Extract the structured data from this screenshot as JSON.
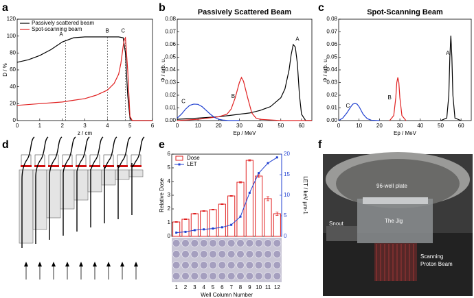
{
  "panel_labels": [
    "a",
    "b",
    "c",
    "d",
    "e",
    "f"
  ],
  "chart_data": [
    {
      "type": "line",
      "xlabel": "z / cm",
      "ylabel": "D / %",
      "xlim": [
        0,
        6
      ],
      "xticks": [
        0,
        1,
        2,
        3,
        4,
        5,
        6
      ],
      "ylim": [
        0,
        120
      ],
      "yticks": [
        0,
        20,
        40,
        60,
        80,
        100,
        120
      ],
      "legend": "upper left",
      "series": [
        {
          "name": "Passively scattered beam",
          "color": "#000000",
          "x": [
            0,
            0.5,
            1,
            1.5,
            2,
            2.5,
            3,
            3.5,
            4,
            4.5,
            4.7,
            4.8,
            4.9,
            5.0,
            5.1,
            6
          ],
          "values": [
            69,
            72,
            77,
            84,
            93,
            98,
            99,
            99,
            99,
            99,
            98,
            80,
            30,
            3,
            0,
            0
          ]
        },
        {
          "name": "Spot-scanning beam",
          "color": "#e02020",
          "x": [
            0,
            0.5,
            1,
            1.5,
            2,
            2.5,
            3,
            3.5,
            4,
            4.3,
            4.5,
            4.6,
            4.7,
            4.75,
            4.8,
            4.9,
            5.0,
            5.1,
            6
          ],
          "values": [
            18,
            19,
            20,
            21,
            22,
            24,
            26,
            30,
            36,
            44,
            55,
            68,
            88,
            96,
            98,
            60,
            5,
            0,
            0
          ]
        }
      ],
      "vlines": [
        {
          "x": 2.15,
          "y": 96
        },
        {
          "x": 4.0,
          "y": 99
        },
        {
          "x": 4.8,
          "y": 99
        }
      ],
      "annotations": [
        {
          "text": "A",
          "x": 1.95,
          "y": 102
        },
        {
          "text": "B",
          "x": 4.0,
          "y": 106
        },
        {
          "text": "C",
          "x": 4.7,
          "y": 106
        }
      ]
    },
    {
      "type": "line",
      "title": "Passively Scattered Beam",
      "xlabel": "Ep / MeV",
      "ylabel": "Φ / arb. u.",
      "xlim": [
        0,
        65
      ],
      "xticks": [
        0,
        10,
        20,
        30,
        40,
        50,
        60
      ],
      "ylim": [
        0,
        0.08
      ],
      "yticks": [
        {
          "value": 0,
          "label": "0.00"
        },
        0.01,
        0.02,
        0.03,
        0.04,
        0.05,
        0.06,
        0.07,
        0.08
      ],
      "series": [
        {
          "color": "#000000",
          "x": [
            0,
            5,
            10,
            15,
            20,
            25,
            30,
            35,
            40,
            45,
            50,
            52,
            54,
            55,
            56,
            57,
            58,
            59,
            60,
            62,
            65
          ],
          "values": [
            0.001,
            0.0015,
            0.002,
            0.0025,
            0.003,
            0.004,
            0.005,
            0.006,
            0.008,
            0.011,
            0.018,
            0.025,
            0.04,
            0.052,
            0.06,
            0.058,
            0.045,
            0.02,
            0.005,
            0,
            0
          ]
        },
        {
          "color": "#e02020",
          "x": [
            0,
            10,
            20,
            24,
            26,
            28,
            30,
            31,
            32,
            34,
            36,
            38,
            40,
            45,
            50,
            60,
            65
          ],
          "values": [
            0,
            0.001,
            0.003,
            0.005,
            0.009,
            0.018,
            0.03,
            0.034,
            0.031,
            0.018,
            0.006,
            0.002,
            0.001,
            0.0005,
            0,
            0,
            0
          ]
        },
        {
          "color": "#1f3fd0",
          "x": [
            0,
            2,
            4,
            6,
            8,
            10,
            12,
            14,
            16,
            18,
            20,
            22,
            25,
            30
          ],
          "values": [
            0.002,
            0.005,
            0.009,
            0.012,
            0.013,
            0.0128,
            0.011,
            0.008,
            0.005,
            0.0025,
            0.001,
            0.0004,
            0,
            0
          ]
        }
      ],
      "annotations": [
        {
          "text": "A",
          "x": 58,
          "y": 0.064
        },
        {
          "text": "B",
          "x": 27,
          "y": 0.019
        },
        {
          "text": "C",
          "x": 3,
          "y": 0.015
        }
      ]
    },
    {
      "type": "line",
      "title": "Spot-Scanning Beam",
      "xlabel": "Ep / MeV",
      "ylabel": "Φ / arb. u.",
      "xlim": [
        0,
        65
      ],
      "xticks": [
        0,
        10,
        20,
        30,
        40,
        50,
        60
      ],
      "ylim": [
        0,
        0.08
      ],
      "yticks": [
        {
          "value": 0,
          "label": "0.00"
        },
        0.01,
        0.02,
        0.03,
        0.04,
        0.05,
        0.06,
        0.07,
        0.08
      ],
      "series": [
        {
          "color": "#000000",
          "x": [
            50,
            53,
            54,
            54.5,
            55,
            55.5,
            56,
            57,
            60
          ],
          "values": [
            0,
            0.002,
            0.02,
            0.05,
            0.067,
            0.05,
            0.02,
            0.002,
            0
          ]
        },
        {
          "color": "#e02020",
          "x": [
            25,
            27,
            28,
            28.5,
            29,
            29.5,
            30,
            31,
            33
          ],
          "values": [
            0,
            0.004,
            0.018,
            0.03,
            0.034,
            0.03,
            0.018,
            0.004,
            0
          ]
        },
        {
          "color": "#1f3fd0",
          "x": [
            0,
            2,
            4,
            6,
            7,
            8,
            9,
            10,
            12,
            14,
            16,
            20
          ],
          "values": [
            0,
            0.002,
            0.006,
            0.011,
            0.013,
            0.0135,
            0.013,
            0.011,
            0.005,
            0.0015,
            0.0003,
            0
          ]
        }
      ],
      "annotations": [
        {
          "text": "A",
          "x": 53.5,
          "y": 0.053
        },
        {
          "text": "B",
          "x": 25,
          "y": 0.018
        },
        {
          "text": "C",
          "x": 4.5,
          "y": 0.0115
        }
      ]
    },
    {
      "type": "bar",
      "xlabel": "Well Column Number",
      "ylabel": "Relative Dose",
      "y2label": "LET / keV µm-1",
      "categories": [
        "1",
        "2",
        "3",
        "4",
        "5",
        "6",
        "7",
        "8",
        "9",
        "10",
        "11",
        "12"
      ],
      "ylim": [
        0,
        6
      ],
      "yticks": [
        0,
        1,
        2,
        3,
        4,
        5,
        6
      ],
      "y2lim": [
        0,
        20
      ],
      "y2ticks": [
        0,
        5,
        10,
        15,
        20
      ],
      "legend": "upper left",
      "series": [
        {
          "name": "Dose",
          "color": "#e02020",
          "values": [
            1.05,
            1.25,
            1.65,
            1.85,
            1.95,
            2.35,
            2.95,
            3.95,
            5.55,
            4.4,
            2.75,
            1.65
          ],
          "errors": [
            0.03,
            0.03,
            0.03,
            0.03,
            0.03,
            0.03,
            0.03,
            0.05,
            0.05,
            0.1,
            0.15,
            0.12
          ]
        },
        {
          "name": "LET",
          "color": "#1f3fd0",
          "axis": "y2",
          "values": [
            0.9,
            1.1,
            1.5,
            1.7,
            1.9,
            2.2,
            2.8,
            4.8,
            10.6,
            15.4,
            17.8,
            19.2
          ]
        }
      ]
    }
  ],
  "photo": {
    "labels": [
      "96-well plate",
      "The Jig",
      "Snout",
      "Scanning",
      "Proton  Beam"
    ]
  }
}
